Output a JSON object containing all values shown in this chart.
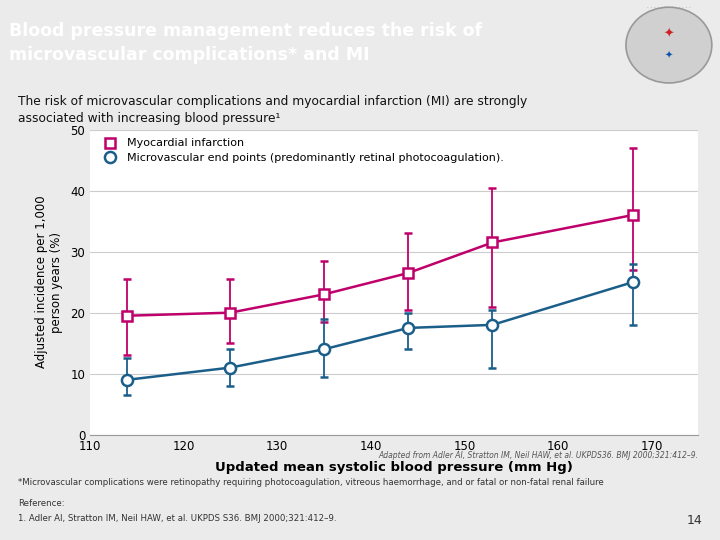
{
  "title_banner": "Blood pressure management reduces the risk of\nmicrovascular complications* and MI",
  "subtitle_line1": "The risk of microvascular complications and myocardial infarction (MI) are strongly",
  "subtitle_line2": "associated with increasing blood pressure¹",
  "xlabel": "Updated mean systolic blood pressure (mm Hg)",
  "ylabel": "Adjusted incidence per 1,000\nperson years (%)",
  "xlim": [
    110,
    175
  ],
  "ylim": [
    0,
    50
  ],
  "xticks": [
    110,
    120,
    130,
    140,
    150,
    160,
    170
  ],
  "yticks": [
    0,
    10,
    20,
    30,
    40,
    50
  ],
  "banner_color": "#1B5E8A",
  "banner_text_color": "#FFFFFF",
  "mi_color": "#C0006A",
  "micro_color": "#1B5E8A",
  "background_color": "#EBEBEB",
  "plot_bg_color": "#FFFFFF",
  "mi_x": [
    114,
    125,
    135,
    144,
    153,
    168
  ],
  "mi_y": [
    19.5,
    20.0,
    23.0,
    26.5,
    31.5,
    36.0
  ],
  "mi_yerr_low": [
    6.5,
    5.0,
    4.5,
    6.0,
    10.5,
    9.0
  ],
  "mi_yerr_high": [
    6.0,
    5.5,
    5.5,
    6.5,
    9.0,
    11.0
  ],
  "micro_x": [
    114,
    125,
    135,
    144,
    153,
    168
  ],
  "micro_y": [
    9.0,
    11.0,
    14.0,
    17.5,
    18.0,
    25.0
  ],
  "micro_yerr_low": [
    2.5,
    3.0,
    4.5,
    3.5,
    7.0,
    7.0
  ],
  "micro_yerr_high": [
    3.5,
    3.0,
    5.0,
    2.5,
    2.5,
    3.0
  ],
  "footnote1": "Adapted from Adler AI, Stratton IM, Neil HAW, et al. UKPDS36. BMJ 2000;321:412–9.",
  "footnote2": "*Microvascular complications were retinopathy requiring photocoagulation, vitreous haemorrhage, and or fatal or non-fatal renal failure",
  "footnote3": "Reference:",
  "footnote4": "1. Adler AI, Stratton IM, Neil HAW, et al. UKPDS S36. BMJ 2000;321:412–9.",
  "page_num": "14",
  "legend_mi": "Myocardial infarction",
  "legend_micro": "Microvascular end points (predominantly retinal photocoagulation).",
  "grid_color": "#CCCCCC"
}
